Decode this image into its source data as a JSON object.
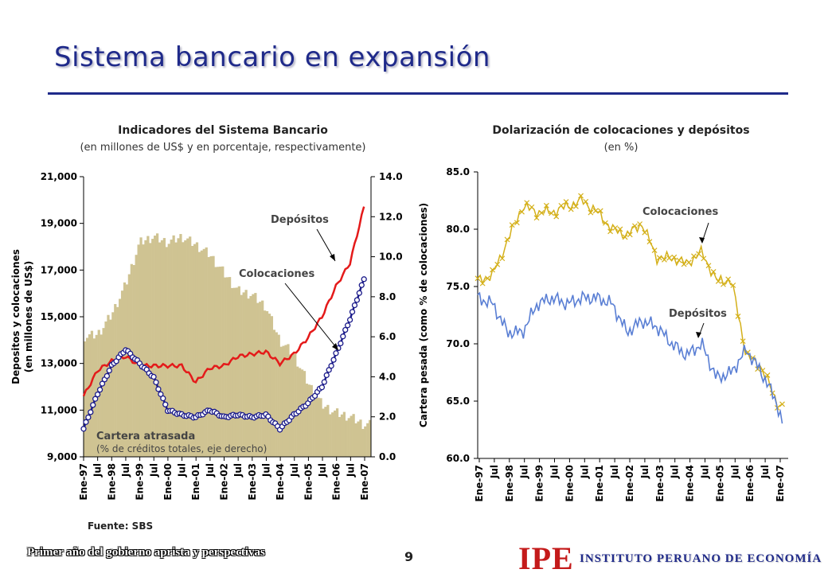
{
  "slide": {
    "title": "Sistema bancario en expansión",
    "source": "Fuente: SBS",
    "footer_left": "Primer año del gobierno aprista y perspectivas",
    "page_number": "9",
    "logo_text": "IPE",
    "institute_name": "INSTITUTO PERUANO DE ECONOMÍA",
    "colors": {
      "title": "#1f2a8a",
      "logo": "#c41a1a"
    }
  },
  "chart_data": [
    {
      "type": "bar",
      "title": "Indicadores del Sistema Bancario",
      "subtitle": "(en millones de US$ y en porcentaje, respectivamente)",
      "ylabel": "Depositos y colocaciones (en millones de US$)",
      "y2label": "",
      "ylim": [
        9000,
        21000
      ],
      "y2lim": [
        0,
        14
      ],
      "yticks": [
        "21,000",
        "19,000",
        "17,000",
        "15,000",
        "13,000",
        "11,000",
        "9,000"
      ],
      "y2ticks": [
        "14.0",
        "12.0",
        "10.0",
        "8.0",
        "6.0",
        "4.0",
        "2.0",
        "0.0"
      ],
      "x_ticks": [
        "Ene-97",
        "Jul",
        "Ene-98",
        "Jul",
        "Ene-99",
        "Jul",
        "Ene-00",
        "Jul",
        "Ene-01",
        "Jul",
        "Ene-02",
        "Jul",
        "Ene-03",
        "Jul",
        "Ene-04",
        "Jul",
        "Ene-05",
        "Jul",
        "Ene-06",
        "Jul",
        "Ene-07"
      ],
      "annotations": [
        {
          "text": "Depósitos"
        },
        {
          "text": "Colocaciones"
        },
        {
          "text": "Cartera atrasada"
        },
        {
          "text": "(% de créditos totales, eje derecho)"
        }
      ],
      "series": [
        {
          "name": "Cartera atrasada",
          "axis": "right",
          "color": "#cfc392",
          "x": [
            1997.0,
            1997.5,
            1998.0,
            1998.5,
            1999.0,
            1999.5,
            2000.0,
            2000.5,
            2001.0,
            2001.5,
            2002.0,
            2002.5,
            2003.0,
            2003.5,
            2004.0,
            2004.5,
            2005.0,
            2005.5,
            2006.0,
            2006.5,
            2007.0
          ],
          "values": [
            6.0,
            6.1,
            7.1,
            8.6,
            10.7,
            11.0,
            10.7,
            11.0,
            10.6,
            10.1,
            9.2,
            8.3,
            8.1,
            7.5,
            5.8,
            5.1,
            3.7,
            2.6,
            2.2,
            2.0,
            1.6
          ]
        },
        {
          "name": "Depósitos",
          "axis": "left",
          "color": "#e41a1a",
          "x": [
            1997.0,
            1997.5,
            1998.0,
            1998.5,
            1999.0,
            1999.5,
            2000.0,
            2000.5,
            2001.0,
            2001.5,
            2002.0,
            2002.5,
            2003.0,
            2003.5,
            2004.0,
            2004.5,
            2005.0,
            2005.5,
            2006.0,
            2006.5,
            2007.0
          ],
          "values": [
            11600,
            12700,
            13100,
            13300,
            12900,
            12900,
            12900,
            12900,
            12200,
            12800,
            12900,
            13300,
            13400,
            13500,
            13000,
            13400,
            14100,
            15000,
            16300,
            17300,
            19700
          ]
        },
        {
          "name": "Colocaciones",
          "axis": "left",
          "color": "#1a1a8a",
          "x": [
            1997.0,
            1997.5,
            1998.0,
            1998.5,
            1999.0,
            1999.5,
            2000.0,
            2000.5,
            2001.0,
            2001.5,
            2002.0,
            2002.5,
            2003.0,
            2003.5,
            2004.0,
            2004.5,
            2005.0,
            2005.5,
            2006.0,
            2006.5,
            2007.0
          ],
          "values": [
            10200,
            11700,
            12900,
            13600,
            13000,
            12400,
            11000,
            10800,
            10700,
            11000,
            10700,
            10800,
            10700,
            10800,
            10200,
            10800,
            11300,
            12000,
            13400,
            14900,
            16600
          ]
        }
      ]
    },
    {
      "type": "line",
      "title": "Dolarización de colocaciones y depósitos",
      "subtitle": "(en %)",
      "ylabel": "Cartera pesada (como % de colocaciones)",
      "ylim": [
        60,
        85
      ],
      "yticks": [
        "85.0",
        "80.0",
        "75.0",
        "70.0",
        "65.0",
        "60.0"
      ],
      "x_ticks": [
        "Ene-97",
        "Jul",
        "Ene-98",
        "Jul",
        "Ene-99",
        "Jul",
        "Ene-00",
        "Jul",
        "Ene-01",
        "Jul",
        "Ene-02",
        "Jul",
        "Ene-03",
        "Jul",
        "Ene-04",
        "Jul",
        "Ene-05",
        "Jul",
        "Ene-06",
        "Jul",
        "Ene-07"
      ],
      "annotations": [
        {
          "text": "Colocaciones"
        },
        {
          "text": "Depósitos"
        }
      ],
      "series": [
        {
          "name": "Colocaciones",
          "color": "#d4b01a",
          "x": [
            1997.0,
            1997.5,
            1998.0,
            1998.5,
            1999.0,
            1999.5,
            2000.0,
            2000.5,
            2001.0,
            2001.5,
            2002.0,
            2002.5,
            2003.0,
            2003.5,
            2004.0,
            2004.5,
            2005.0,
            2005.5,
            2006.0,
            2006.5,
            2007.0,
            2007.2
          ],
          "values": [
            75.5,
            76.0,
            79.0,
            82.0,
            81.5,
            81.5,
            82.0,
            82.5,
            81.5,
            80.0,
            79.5,
            80.5,
            77.5,
            77.5,
            77.0,
            78.0,
            75.5,
            75.5,
            69.0,
            68.0,
            65.0,
            64.5
          ]
        },
        {
          "name": "Depósitos",
          "color": "#5a7fd4",
          "x": [
            1997.0,
            1997.5,
            1998.0,
            1998.5,
            1999.0,
            1999.5,
            2000.0,
            2000.5,
            2001.0,
            2001.5,
            2002.0,
            2002.5,
            2003.0,
            2003.5,
            2004.0,
            2004.5,
            2005.0,
            2005.5,
            2006.0,
            2006.5,
            2007.0,
            2007.2
          ],
          "values": [
            74.0,
            73.5,
            71.0,
            71.0,
            73.5,
            74.0,
            73.5,
            74.0,
            74.0,
            73.5,
            71.0,
            72.0,
            71.5,
            70.0,
            69.0,
            70.0,
            67.0,
            67.5,
            69.5,
            67.5,
            65.0,
            63.0
          ]
        }
      ]
    }
  ]
}
